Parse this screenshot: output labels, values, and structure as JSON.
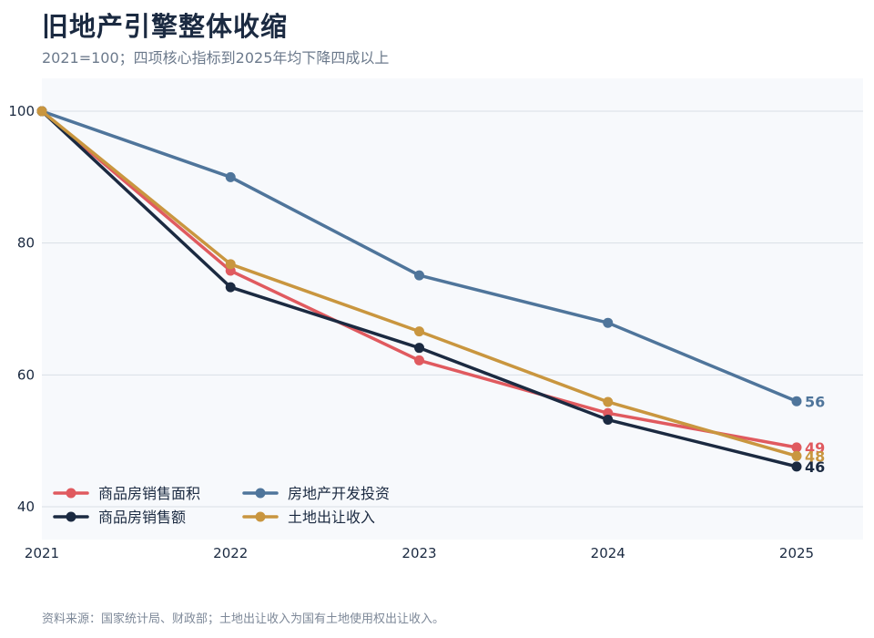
{
  "title": "旧地产引擎整体收缩",
  "subtitle": "2021=100；四项核心指标到2025年均下降四成以上",
  "source": "资料来源：国家统计局、财政部；土地出让收入为国有土地使用权出让收入。",
  "chart_data": {
    "type": "line",
    "x": [
      "2021",
      "2022",
      "2023",
      "2024",
      "2025"
    ],
    "ylim": [
      35,
      105
    ],
    "yticks": [
      "40",
      "60",
      "80",
      "100"
    ],
    "grid": true,
    "legend_position": "bottom-left",
    "series": [
      {
        "name": "商品房销售面积",
        "color": "#e05a5f",
        "values": [
          100,
          75.8,
          62.2,
          54.2,
          49
        ],
        "end_label": "49"
      },
      {
        "name": "房地产开发投资",
        "color": "#4f759b",
        "values": [
          100,
          90,
          75.1,
          67.9,
          56
        ],
        "end_label": "56"
      },
      {
        "name": "商品房销售额",
        "color": "#1b2a41",
        "values": [
          100,
          73.3,
          64.1,
          53.2,
          46.1
        ],
        "end_label": "46"
      },
      {
        "name": "土地出让收入",
        "color": "#c9963f",
        "values": [
          100,
          76.8,
          66.6,
          55.9,
          47.7
        ],
        "end_label": "48"
      }
    ]
  }
}
